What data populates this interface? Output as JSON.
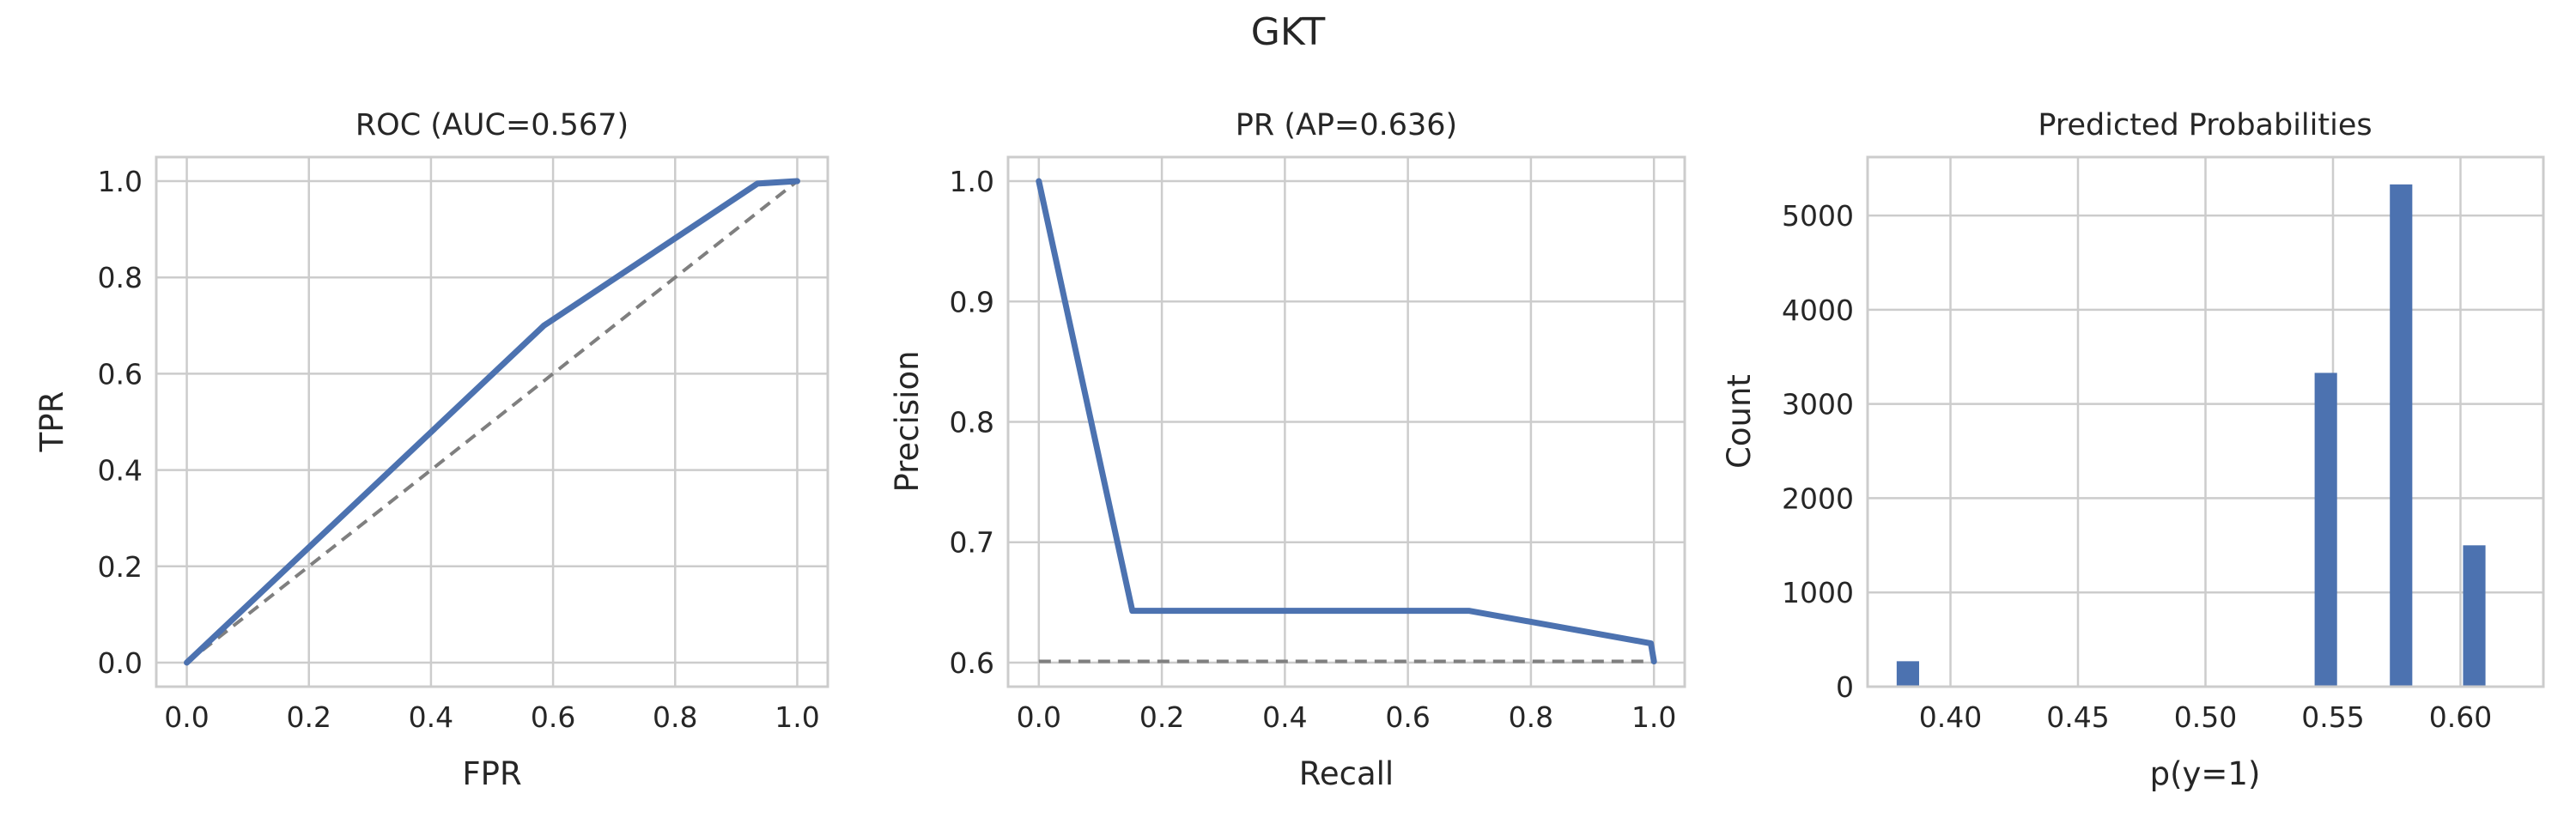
{
  "figure": {
    "title": "GKT"
  },
  "chart_data": [
    {
      "type": "line",
      "title": "ROC (AUC=0.567)",
      "xlabel": "FPR",
      "ylabel": "TPR",
      "xlim": [
        -0.05,
        1.05
      ],
      "ylim": [
        -0.05,
        1.05
      ],
      "xticks": [
        0.0,
        0.2,
        0.4,
        0.6,
        0.8,
        1.0
      ],
      "yticks": [
        0.0,
        0.2,
        0.4,
        0.6,
        0.8,
        1.0
      ],
      "xtick_labels": [
        "0.0",
        "0.2",
        "0.4",
        "0.6",
        "0.8",
        "1.0"
      ],
      "ytick_labels": [
        "0.0",
        "0.2",
        "0.4",
        "0.6",
        "0.8",
        "1.0"
      ],
      "grid": true,
      "series": [
        {
          "x": [
            0.0,
            0.585,
            0.935,
            1.0
          ],
          "y": [
            0.0,
            0.7,
            0.995,
            1.0
          ],
          "color": "#4c72b0"
        }
      ],
      "reference_line": {
        "x": [
          0.0,
          1.0
        ],
        "y": [
          0.0,
          1.0
        ],
        "style": "dashed",
        "color": "#7f7f7f"
      }
    },
    {
      "type": "line",
      "title": "PR (AP=0.636)",
      "xlabel": "Recall",
      "ylabel": "Precision",
      "xlim": [
        -0.05,
        1.05
      ],
      "ylim": [
        0.58,
        1.02
      ],
      "xticks": [
        0.0,
        0.2,
        0.4,
        0.6,
        0.8,
        1.0
      ],
      "yticks": [
        0.6,
        0.7,
        0.8,
        0.9,
        1.0
      ],
      "xtick_labels": [
        "0.0",
        "0.2",
        "0.4",
        "0.6",
        "0.8",
        "1.0"
      ],
      "ytick_labels": [
        "0.6",
        "0.7",
        "0.8",
        "0.9",
        "1.0"
      ],
      "grid": true,
      "series": [
        {
          "x": [
            0.0,
            0.152,
            0.7,
            0.995,
            1.0
          ],
          "y": [
            1.0,
            0.643,
            0.643,
            0.616,
            0.601
          ],
          "color": "#4c72b0"
        }
      ],
      "reference_line": {
        "x": [
          0.0,
          1.0
        ],
        "y": [
          0.601,
          0.601
        ],
        "style": "dashed",
        "color": "#7f7f7f"
      }
    },
    {
      "type": "bar",
      "title": "Predicted Probabilities",
      "xlabel": "p(y=1)",
      "ylabel": "Count",
      "xlim": [
        0.3675,
        0.6325
      ],
      "ylim": [
        0,
        5620
      ],
      "xticks": [
        0.4,
        0.45,
        0.5,
        0.55,
        0.6
      ],
      "yticks": [
        0,
        1000,
        2000,
        3000,
        4000,
        5000
      ],
      "xtick_labels": [
        "0.40",
        "0.45",
        "0.50",
        "0.55",
        "0.60"
      ],
      "ytick_labels": [
        "0",
        "1000",
        "2000",
        "3000",
        "4000",
        "5000"
      ],
      "grid": true,
      "bar_width": 0.0088,
      "bars": [
        {
          "x": 0.3833,
          "value": 270
        },
        {
          "x": 0.5472,
          "value": 3330
        },
        {
          "x": 0.5767,
          "value": 5330
        },
        {
          "x": 0.6054,
          "value": 1500
        }
      ],
      "color": "#4c72b0"
    }
  ]
}
